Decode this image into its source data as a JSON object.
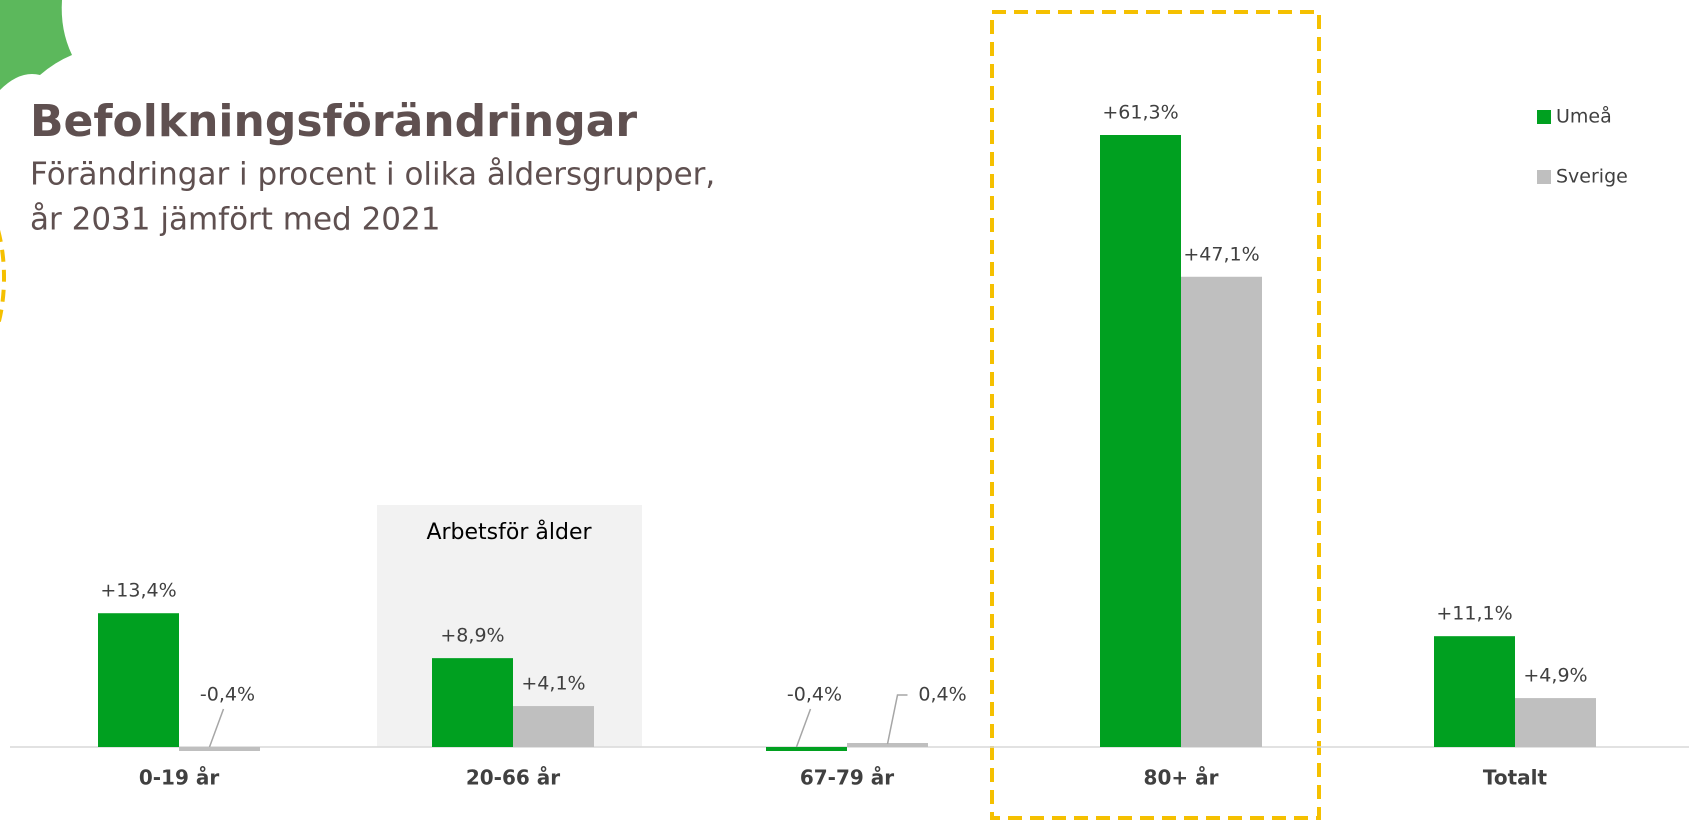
{
  "chart_data": {
    "type": "bar",
    "title": "Befolkningsförändringar",
    "subtitle": [
      "Förändringar i procent i olika åldersgrupper,",
      "år 2031 jämfört med 2021"
    ],
    "annotation": "Arbetsför ålder",
    "categories": [
      "0-19 år",
      "20-66 år",
      "67-79 år",
      "80+ år",
      "Totalt"
    ],
    "series": [
      {
        "name": "Umeå",
        "color": "#00a020",
        "values": [
          13.4,
          8.9,
          -0.4,
          61.3,
          11.1
        ],
        "value_labels": [
          "+13,4%",
          "+8,9%",
          "-0,4%",
          "+61,3%",
          "+11,1%"
        ]
      },
      {
        "name": "Sverige",
        "color": "#bfbfbf",
        "values": [
          -0.4,
          4.1,
          0.4,
          47.1,
          4.9
        ],
        "value_labels": [
          "-0,4%",
          "+4,1%",
          "0,4%",
          "+47,1%",
          "+4,9%"
        ]
      }
    ],
    "legend": "top-right"
  }
}
